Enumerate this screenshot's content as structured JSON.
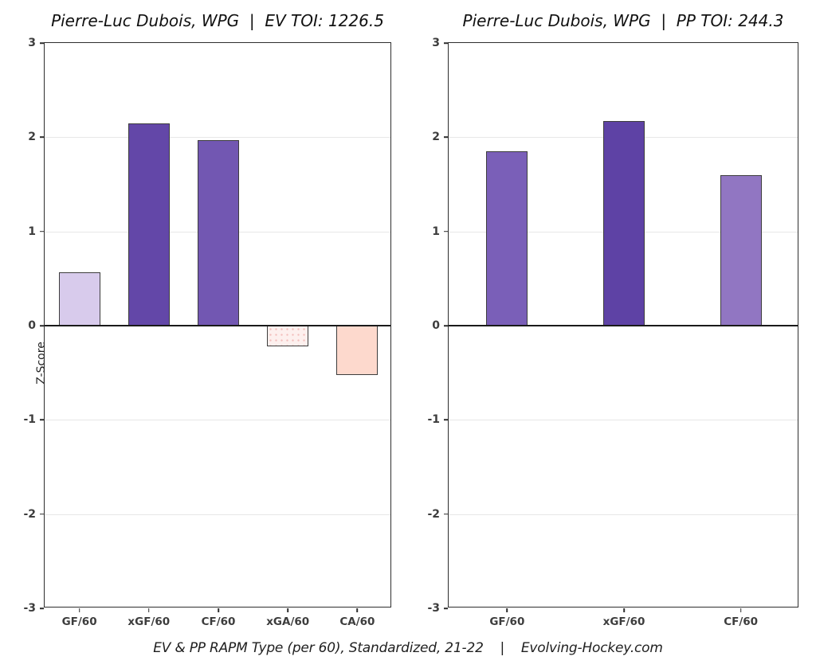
{
  "figure": {
    "background": "#ffffff",
    "caption": "EV & PP RAPM Type (per 60), Standardized, 21-22    |    Evolving-Hockey.com",
    "ylabel": "Z-Score"
  },
  "chart_data": [
    {
      "type": "bar",
      "title": "Pierre-Luc Dubois, WPG  |  EV TOI: 1226.5",
      "ylabel": "Z-Score",
      "xlabel": "",
      "ylim": [
        -3,
        3
      ],
      "yticks": [
        3,
        2,
        1,
        0,
        -1,
        -2,
        -3
      ],
      "grid": true,
      "legend": false,
      "categories": [
        "GF/60",
        "xGF/60",
        "CF/60",
        "xGA/60",
        "CA/60"
      ],
      "values": [
        0.57,
        2.15,
        1.97,
        -0.22,
        -0.52
      ],
      "bar_colors": [
        "#d8cbec",
        "#6347a8",
        "#7257b2",
        "#fdf0ee",
        "#fdd9cd"
      ],
      "bar_textures": [
        "none",
        "none",
        "none",
        "dots",
        "none"
      ],
      "edge_color": "#3d3d3d",
      "zero_line_color": "#1a1a1a",
      "gridline_color": "#e7e7e7"
    },
    {
      "type": "bar",
      "title": "Pierre-Luc Dubois, WPG  |  PP TOI: 244.3",
      "ylabel": "",
      "xlabel": "",
      "ylim": [
        -3,
        3
      ],
      "yticks": [
        3,
        2,
        1,
        0,
        -1,
        -2,
        -3
      ],
      "grid": true,
      "legend": false,
      "categories": [
        "GF/60",
        "xGF/60",
        "CF/60"
      ],
      "values": [
        1.85,
        2.17,
        1.6
      ],
      "bar_colors": [
        "#7a5fb8",
        "#5e42a5",
        "#9176c2"
      ],
      "bar_textures": [
        "none",
        "none",
        "none"
      ],
      "edge_color": "#3d3d3d",
      "zero_line_color": "#1a1a1a",
      "gridline_color": "#e7e7e7"
    }
  ]
}
